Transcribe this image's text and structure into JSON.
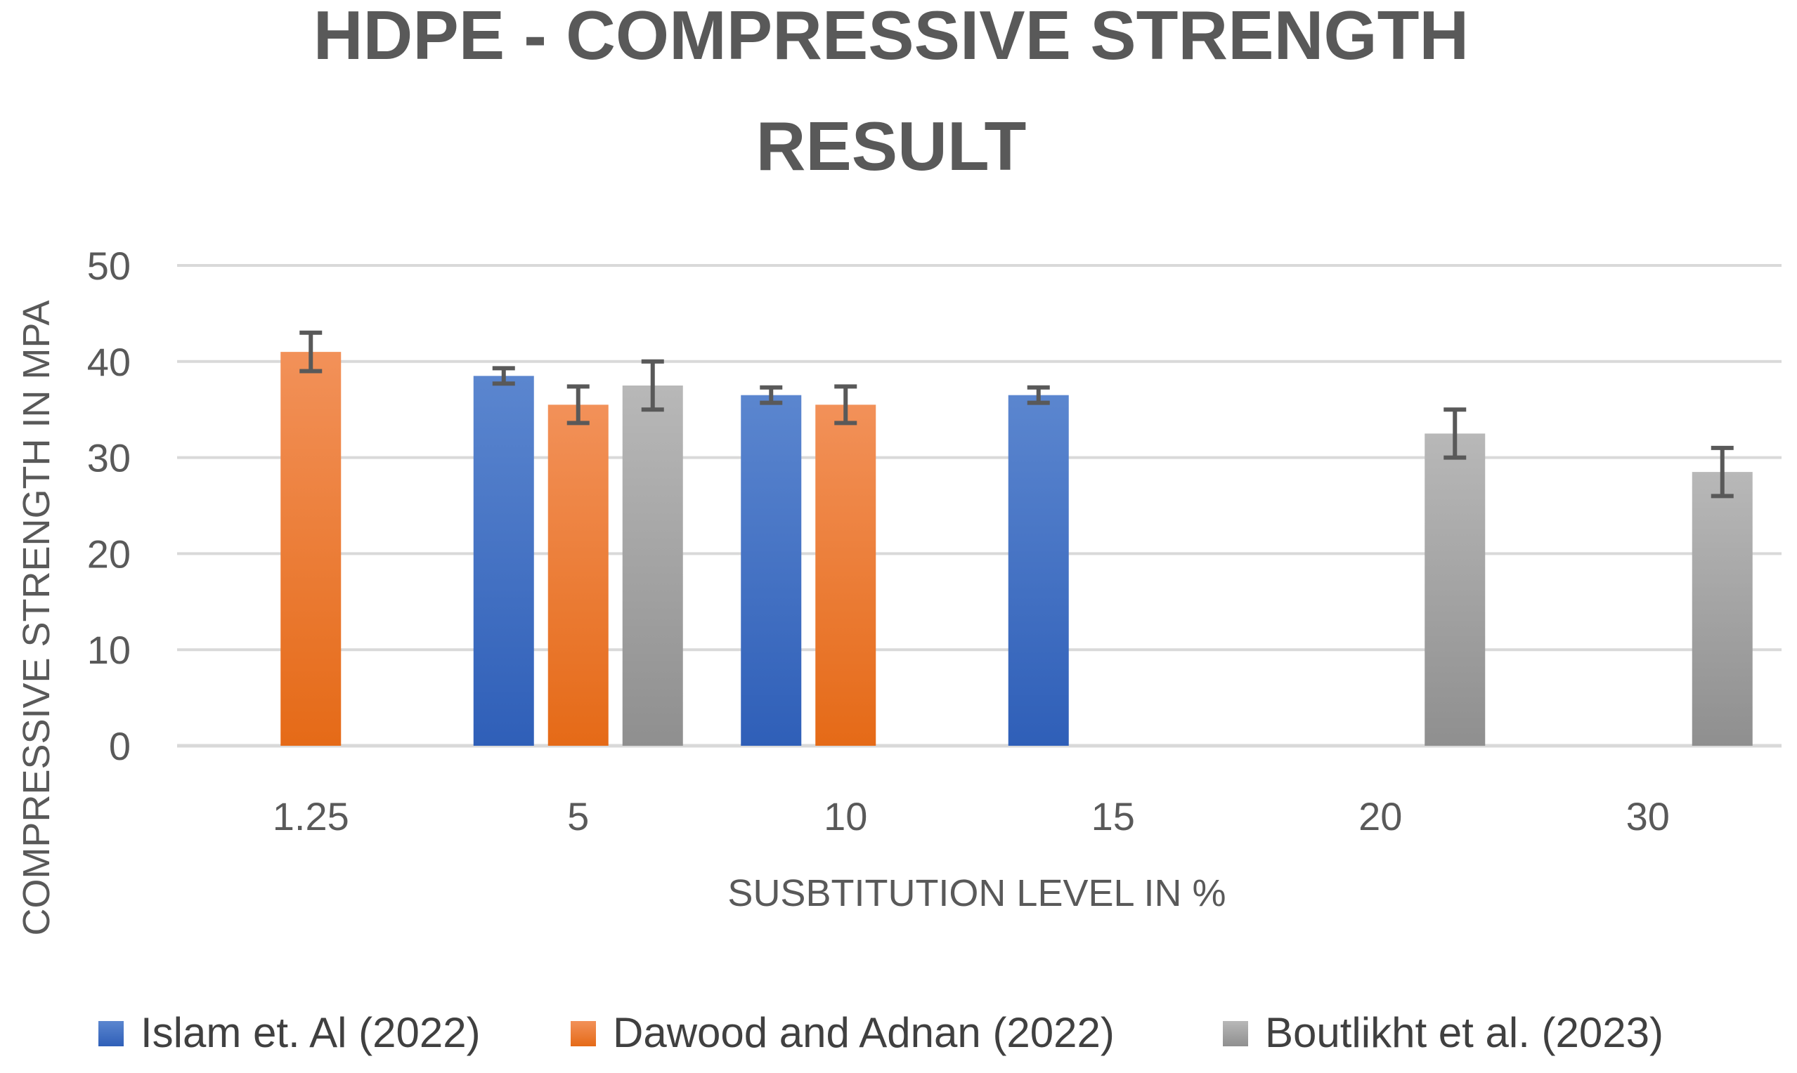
{
  "chart_data": {
    "type": "bar",
    "title_lines": [
      "HDPE - COMPRESSIVE STRENGTH",
      "RESULT"
    ],
    "xlabel": "SUSBTITUTION LEVEL IN %",
    "ylabel": "COMPRESSIVE STRENGTH IN MPA",
    "categories": [
      "1.25",
      "5",
      "10",
      "15",
      "20",
      "30"
    ],
    "ylim": [
      0,
      50
    ],
    "yticks": [
      0,
      10,
      20,
      30,
      40,
      50
    ],
    "grid": true,
    "legend_position": "bottom",
    "series": [
      {
        "name": "Islam et. Al (2022)",
        "color": "#4472C4",
        "values": [
          null,
          38.5,
          36.5,
          36.5,
          null,
          null
        ],
        "errors": [
          null,
          0.8,
          0.8,
          0.8,
          null,
          null
        ]
      },
      {
        "name": "Dawood and Adnan (2022)",
        "color": "#ED7D31",
        "values": [
          41,
          35.5,
          35.5,
          null,
          null,
          null
        ],
        "errors": [
          2.0,
          1.9,
          1.9,
          null,
          null,
          null
        ]
      },
      {
        "name": "Boutlikht et al. (2023)",
        "color": "#A5A5A5",
        "values": [
          null,
          37.5,
          null,
          null,
          32.5,
          28.5
        ],
        "errors": [
          null,
          2.5,
          null,
          null,
          2.5,
          2.5
        ]
      }
    ]
  }
}
